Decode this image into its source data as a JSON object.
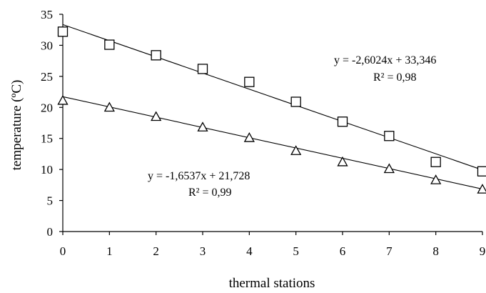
{
  "chart_data": {
    "type": "scatter",
    "xlabel": "thermal stations",
    "ylabel": "temperature (ºC)",
    "xlim": [
      0,
      9
    ],
    "ylim": [
      0,
      35
    ],
    "x_ticks": [
      "0",
      "1",
      "2",
      "3",
      "4",
      "5",
      "6",
      "7",
      "8",
      "9"
    ],
    "y_ticks": [
      "0",
      "5",
      "10",
      "15",
      "20",
      "25",
      "30",
      "35"
    ],
    "grid": false,
    "series": [
      {
        "marker": "square",
        "x": [
          0,
          1,
          2,
          3,
          4,
          5,
          6,
          7,
          8,
          9
        ],
        "y": [
          32.2,
          30.1,
          28.4,
          26.2,
          24.1,
          20.9,
          17.7,
          15.4,
          11.2,
          9.7
        ],
        "trendline": {
          "slope": -2.6024,
          "intercept": 33.346
        },
        "equation": "y = -2,6024x + 33,346",
        "r2": "R² = 0,98"
      },
      {
        "marker": "triangle",
        "x": [
          0,
          1,
          2,
          3,
          4,
          5,
          6,
          7,
          8,
          9
        ],
        "y": [
          21.1,
          20.0,
          18.5,
          16.8,
          15.1,
          13.0,
          11.2,
          10.1,
          8.3,
          6.8
        ],
        "trendline": {
          "slope": -1.6537,
          "intercept": 21.728
        },
        "equation": "y = -1,6537x + 21,728",
        "r2": "R² = 0,99"
      }
    ]
  }
}
